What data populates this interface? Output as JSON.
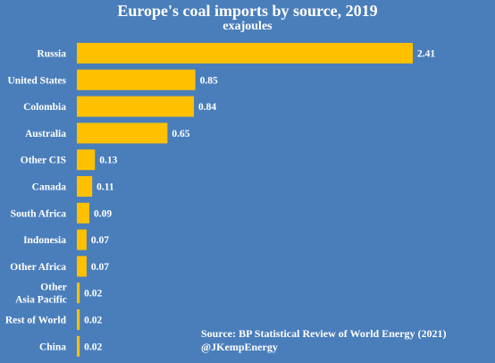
{
  "chart_data": {
    "type": "bar",
    "orientation": "horizontal",
    "title": "Europe's coal imports by source, 2019",
    "subtitle": "exajoules",
    "xlabel": "",
    "ylabel": "",
    "categories": [
      "Russia",
      "United States",
      "Colombia",
      "Australia",
      "Other CIS",
      "Canada",
      "South Africa",
      "Indonesia",
      "Other Africa",
      "Other Asia Pacific",
      "Rest of World",
      "China"
    ],
    "values": [
      2.41,
      0.85,
      0.84,
      0.65,
      0.13,
      0.11,
      0.09,
      0.07,
      0.07,
      0.02,
      0.02,
      0.02
    ],
    "value_labels": [
      "2.41",
      "0.85",
      "0.84",
      "0.65",
      "0.13",
      "0.11",
      "0.09",
      "0.07",
      "0.07",
      "0.02",
      "0.02",
      "0.02"
    ],
    "xlim": [
      0,
      2.41
    ],
    "grid": false,
    "legend": "none",
    "bar_color": "#ffc000",
    "background_color": "#4a7ebb"
  },
  "source": {
    "line1": "Source: BP Statistical Review of World Energy (2021)",
    "line2": "@JKempEnergy"
  }
}
